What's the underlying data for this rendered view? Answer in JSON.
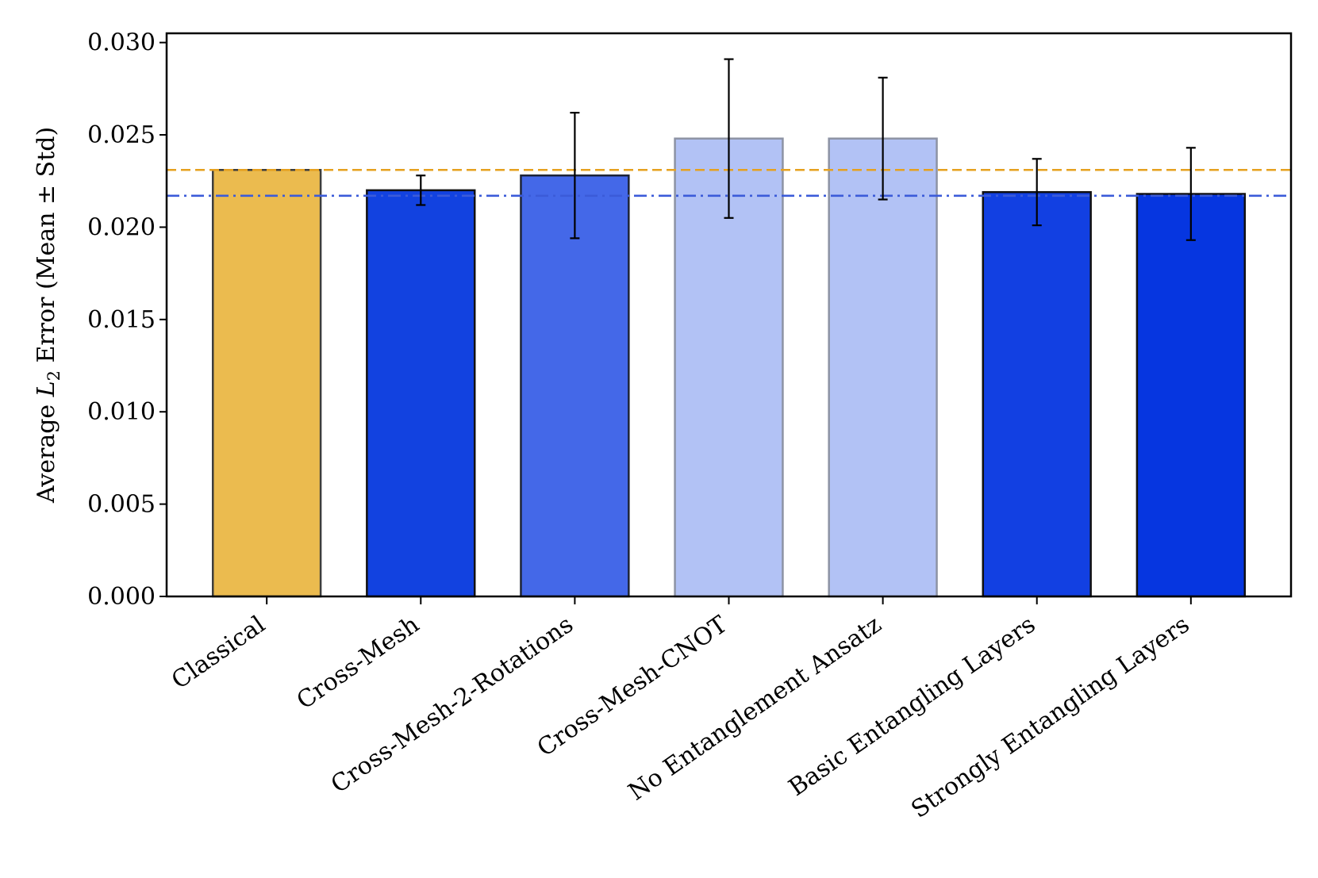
{
  "chart_data": {
    "type": "bar",
    "title": "",
    "xlabel": "",
    "ylabel": "Average L2 Error (Mean ± Std)",
    "ylabel_parts": {
      "before": "Average ",
      "var": "L",
      "sub": "2",
      "after": " Error (Mean ± Std)"
    },
    "ylim": [
      0,
      0.0305
    ],
    "yticks": [
      "0.000",
      "0.005",
      "0.010",
      "0.015",
      "0.020",
      "0.025",
      "0.030"
    ],
    "categories": [
      "Classical",
      "Cross-Mesh",
      "Cross-Mesh-2-Rotations",
      "Cross-Mesh-CNOT",
      "No Entanglement Ansatz",
      "Basic Entangling Layers",
      "Strongly Entangling Layers"
    ],
    "values": [
      0.0231,
      0.022,
      0.0228,
      0.0248,
      0.0248,
      0.0219,
      0.0218
    ],
    "std": [
      0.0,
      0.0008,
      0.0034,
      0.0043,
      0.0033,
      0.0018,
      0.0025
    ],
    "bar_colors": [
      "#ebbb4f",
      "#1242e0",
      "#4468e8",
      "#b2c2f5",
      "#b2c2f5",
      "#1240e2",
      "#0636e0"
    ],
    "bar_edge_colors": [
      "#3d3d3d",
      "#111111",
      "#1e2436",
      "#8d93a4",
      "#8d93a4",
      "#111111",
      "#111111"
    ],
    "reference_lines": [
      {
        "value": 0.0231,
        "color": "#e6a11f",
        "style": "dashed"
      },
      {
        "value": 0.0217,
        "color": "#3b5bd9",
        "style": "dashdot"
      }
    ],
    "grid": false,
    "legend": "none"
  }
}
